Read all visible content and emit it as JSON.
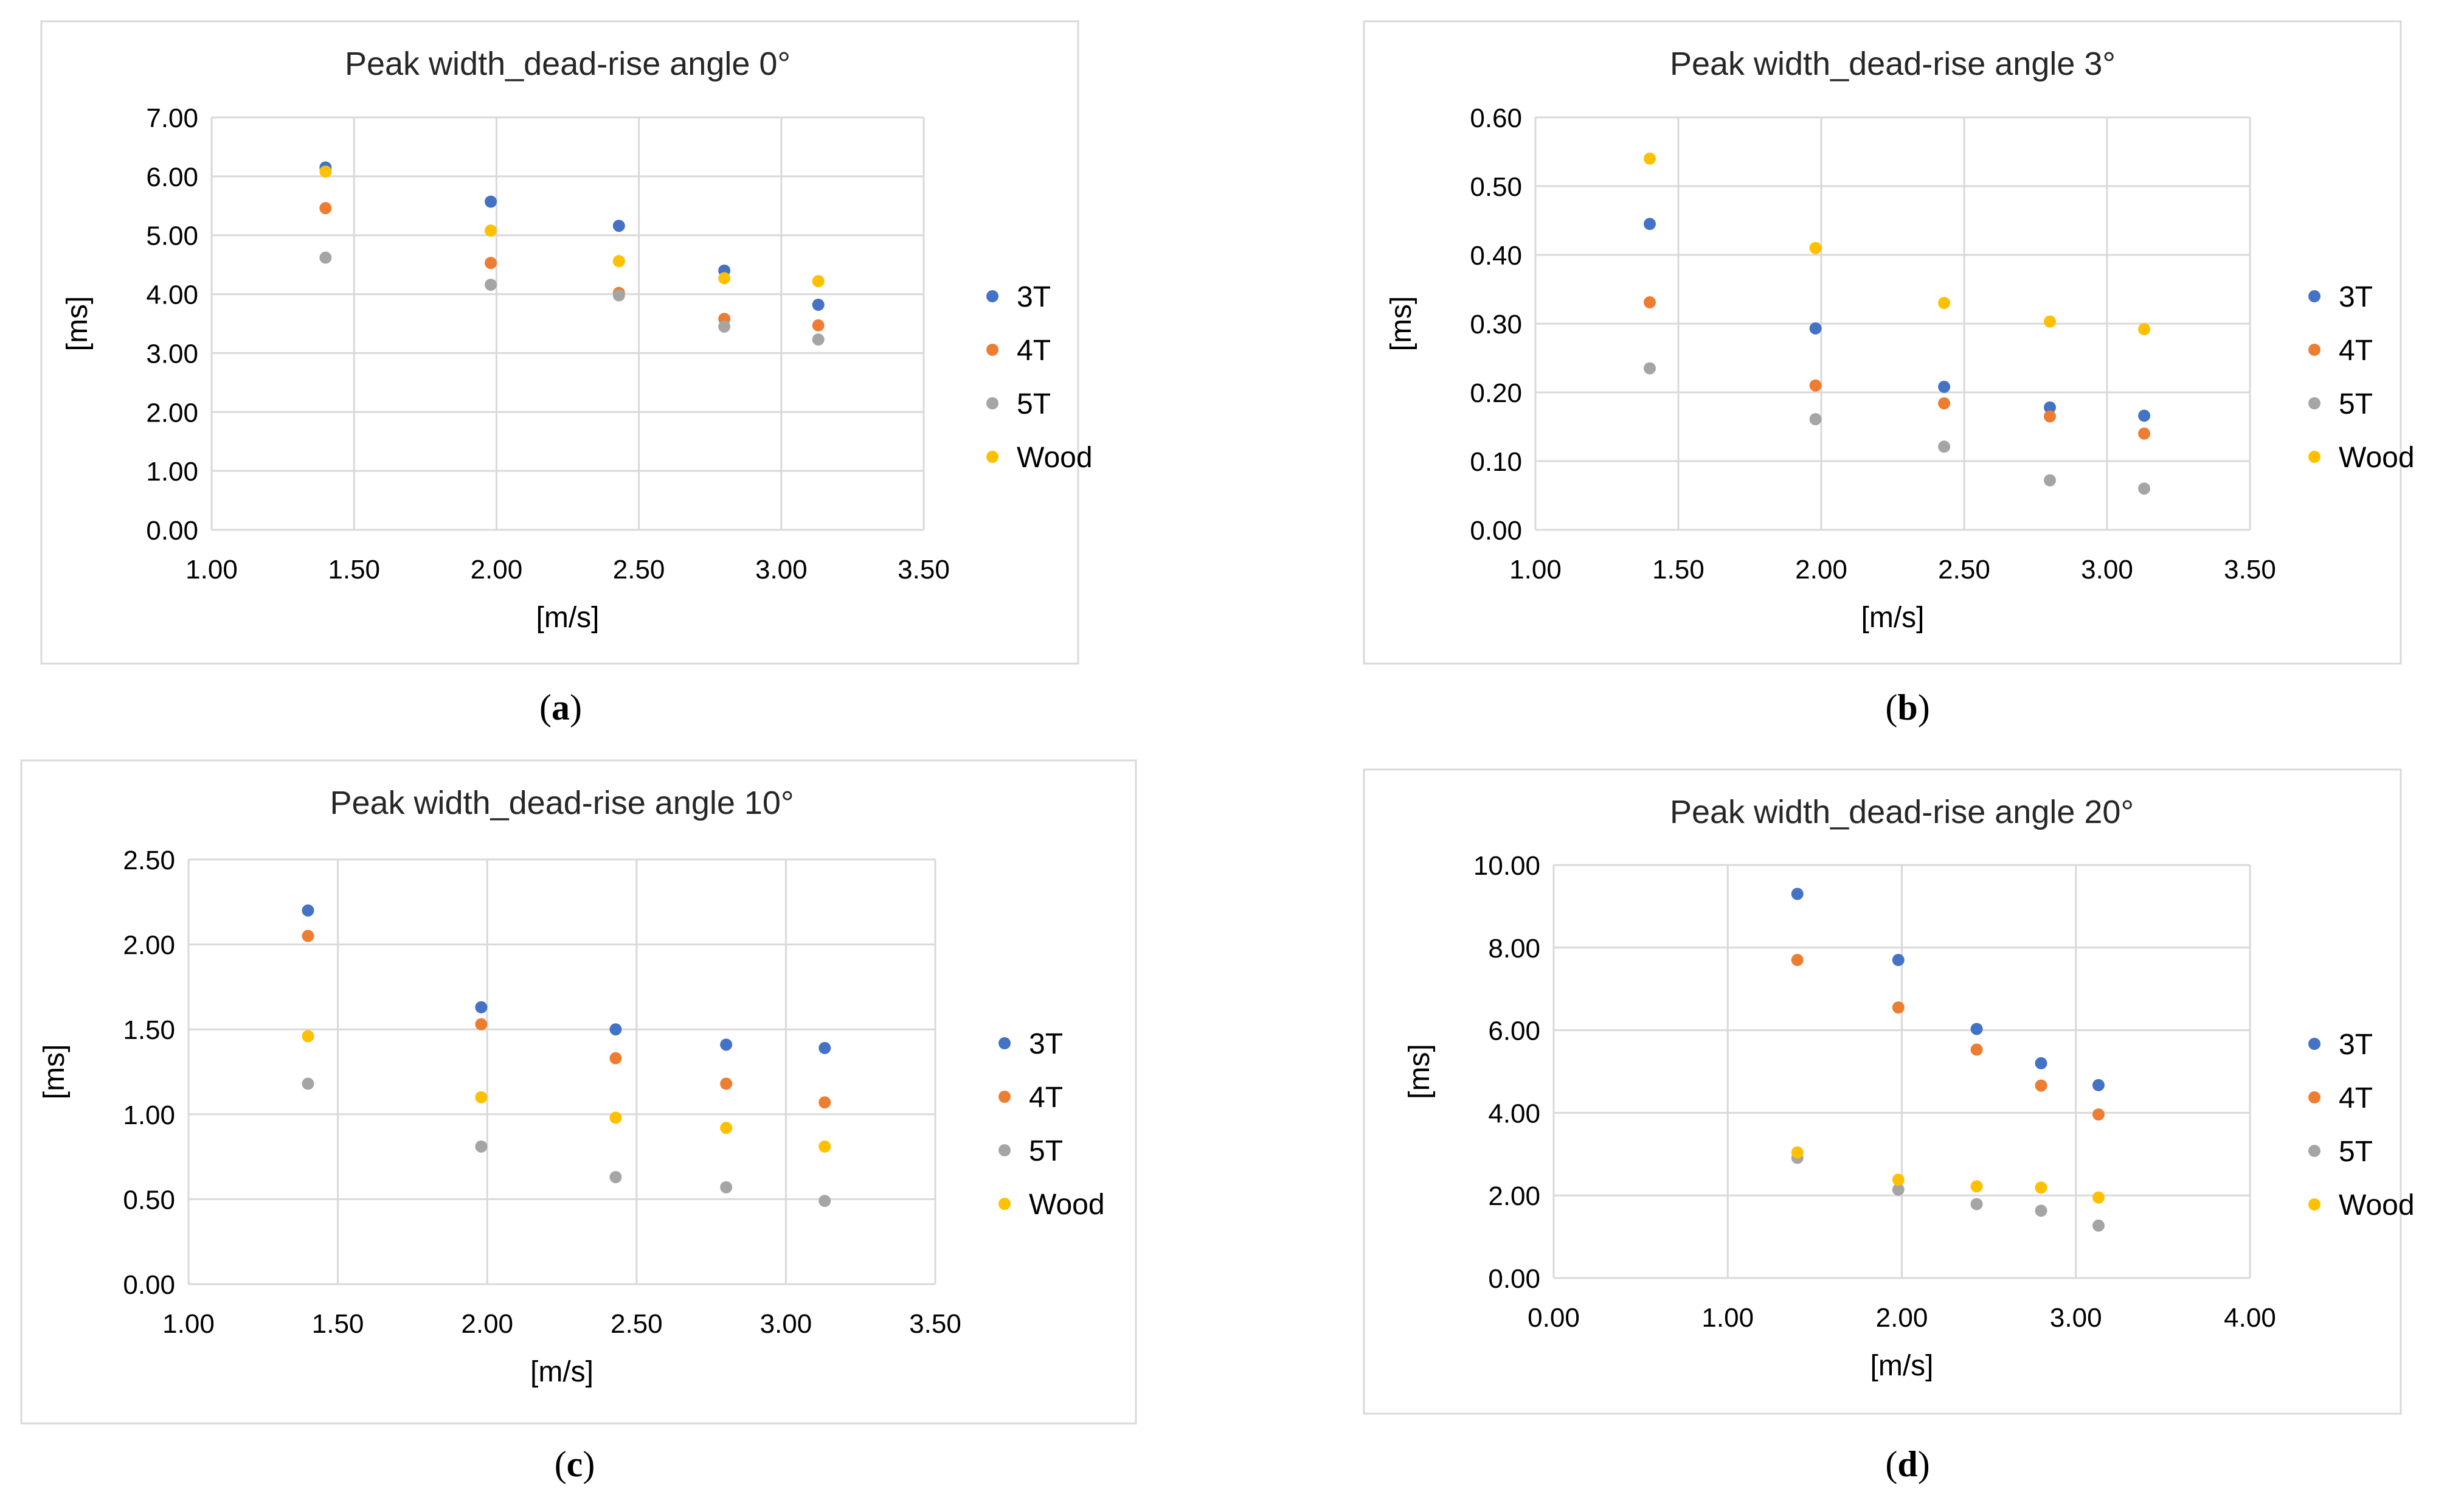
{
  "chart_data": [
    {
      "type": "scatter",
      "panel_label": "a",
      "title": "Peak width_dead-rise angle 0°",
      "xlabel": "[m/s]",
      "ylabel": "[ms]",
      "xlim": [
        1.0,
        3.5
      ],
      "ylim": [
        0.0,
        7.0
      ],
      "xticks": [
        1.0,
        1.5,
        2.0,
        2.5,
        3.0,
        3.5
      ],
      "xtick_labels": [
        "1.00",
        "1.50",
        "2.00",
        "2.50",
        "3.00",
        "3.50"
      ],
      "yticks": [
        0,
        1,
        2,
        3,
        4,
        5,
        6,
        7
      ],
      "ytick_labels": [
        "0.00",
        "1.00",
        "2.00",
        "3.00",
        "4.00",
        "5.00",
        "6.00",
        "7.00"
      ],
      "grid": true,
      "legend_position": "right",
      "series": [
        {
          "name": "3T",
          "color": "#4472C4",
          "x": [
            1.4,
            1.98,
            2.43,
            2.8,
            3.13
          ],
          "y": [
            6.15,
            5.57,
            5.16,
            4.4,
            3.82
          ]
        },
        {
          "name": "4T",
          "color": "#ED7D31",
          "x": [
            1.4,
            1.98,
            2.43,
            2.8,
            3.13
          ],
          "y": [
            5.46,
            4.53,
            4.02,
            3.58,
            3.47
          ]
        },
        {
          "name": "5T",
          "color": "#A5A5A5",
          "x": [
            1.4,
            1.98,
            2.43,
            2.8,
            3.13
          ],
          "y": [
            4.62,
            4.16,
            3.98,
            3.45,
            3.23
          ]
        },
        {
          "name": "Wood",
          "color": "#FFC000",
          "x": [
            1.4,
            1.98,
            2.43,
            2.8,
            3.13
          ],
          "y": [
            6.08,
            5.08,
            4.56,
            4.27,
            4.22
          ]
        }
      ]
    },
    {
      "type": "scatter",
      "panel_label": "b",
      "title": "Peak width_dead-rise angle 3°",
      "xlabel": "[m/s]",
      "ylabel": "[ms]",
      "xlim": [
        1.0,
        3.5
      ],
      "ylim": [
        0.0,
        0.6
      ],
      "xticks": [
        1.0,
        1.5,
        2.0,
        2.5,
        3.0,
        3.5
      ],
      "xtick_labels": [
        "1.00",
        "1.50",
        "2.00",
        "2.50",
        "3.00",
        "3.50"
      ],
      "yticks": [
        0,
        0.1,
        0.2,
        0.3,
        0.4,
        0.5,
        0.6
      ],
      "ytick_labels": [
        "0.00",
        "0.10",
        "0.20",
        "0.30",
        "0.40",
        "0.50",
        "0.60"
      ],
      "grid": true,
      "legend_position": "right",
      "series": [
        {
          "name": "3T",
          "color": "#4472C4",
          "x": [
            1.4,
            1.98,
            2.43,
            2.8,
            3.13
          ],
          "y": [
            0.445,
            0.293,
            0.208,
            0.178,
            0.166
          ]
        },
        {
          "name": "4T",
          "color": "#ED7D31",
          "x": [
            1.4,
            1.98,
            2.43,
            2.8,
            3.13
          ],
          "y": [
            0.331,
            0.21,
            0.184,
            0.165,
            0.14
          ]
        },
        {
          "name": "5T",
          "color": "#A5A5A5",
          "x": [
            1.4,
            1.98,
            2.43,
            2.8,
            3.13
          ],
          "y": [
            0.235,
            0.161,
            0.121,
            0.072,
            0.06
          ]
        },
        {
          "name": "Wood",
          "color": "#FFC000",
          "x": [
            1.4,
            1.98,
            2.43,
            2.8,
            3.13
          ],
          "y": [
            0.54,
            0.41,
            0.33,
            0.303,
            0.292
          ]
        }
      ]
    },
    {
      "type": "scatter",
      "panel_label": "c",
      "title": "Peak width_dead-rise angle 10°",
      "xlabel": "[m/s]",
      "ylabel": "[ms]",
      "xlim": [
        1.0,
        3.5
      ],
      "ylim": [
        0.0,
        2.5
      ],
      "xticks": [
        1.0,
        1.5,
        2.0,
        2.5,
        3.0,
        3.5
      ],
      "xtick_labels": [
        "1.00",
        "1.50",
        "2.00",
        "2.50",
        "3.00",
        "3.50"
      ],
      "yticks": [
        0,
        0.5,
        1.0,
        1.5,
        2.0,
        2.5
      ],
      "ytick_labels": [
        "0.00",
        "0.50",
        "1.00",
        "1.50",
        "2.00",
        "2.50"
      ],
      "grid": true,
      "legend_position": "right",
      "series": [
        {
          "name": "3T",
          "color": "#4472C4",
          "x": [
            1.4,
            1.98,
            2.43,
            2.8,
            3.13
          ],
          "y": [
            2.2,
            1.63,
            1.5,
            1.41,
            1.39
          ]
        },
        {
          "name": "4T",
          "color": "#ED7D31",
          "x": [
            1.4,
            1.98,
            2.43,
            2.8,
            3.13
          ],
          "y": [
            2.05,
            1.53,
            1.33,
            1.18,
            1.07
          ]
        },
        {
          "name": "5T",
          "color": "#A5A5A5",
          "x": [
            1.4,
            1.98,
            2.43,
            2.8,
            3.13
          ],
          "y": [
            1.18,
            0.81,
            0.63,
            0.57,
            0.49
          ]
        },
        {
          "name": "Wood",
          "color": "#FFC000",
          "x": [
            1.4,
            1.98,
            2.43,
            2.8,
            3.13
          ],
          "y": [
            1.46,
            1.1,
            0.98,
            0.92,
            0.81
          ]
        }
      ]
    },
    {
      "type": "scatter",
      "panel_label": "d",
      "title": "Peak width_dead-rise angle 20°",
      "xlabel": "[m/s]",
      "ylabel": "[ms]",
      "xlim": [
        0.0,
        4.0
      ],
      "ylim": [
        0.0,
        10.0
      ],
      "xticks": [
        0,
        1,
        2,
        3,
        4
      ],
      "xtick_labels": [
        "0.00",
        "1.00",
        "2.00",
        "3.00",
        "4.00"
      ],
      "yticks": [
        0,
        2,
        4,
        6,
        8,
        10
      ],
      "ytick_labels": [
        "0.00",
        "2.00",
        "4.00",
        "6.00",
        "8.00",
        "10.00"
      ],
      "grid": true,
      "legend_position": "right",
      "series": [
        {
          "name": "3T",
          "color": "#4472C4",
          "x": [
            1.4,
            1.98,
            2.43,
            2.8,
            3.13
          ],
          "y": [
            9.3,
            7.7,
            6.03,
            5.2,
            4.67
          ]
        },
        {
          "name": "4T",
          "color": "#ED7D31",
          "x": [
            1.4,
            1.98,
            2.43,
            2.8,
            3.13
          ],
          "y": [
            7.7,
            6.55,
            5.53,
            4.66,
            3.96
          ]
        },
        {
          "name": "5T",
          "color": "#A5A5A5",
          "x": [
            1.4,
            1.98,
            2.43,
            2.8,
            3.13
          ],
          "y": [
            2.91,
            2.14,
            1.79,
            1.63,
            1.27
          ]
        },
        {
          "name": "Wood",
          "color": "#FFC000",
          "x": [
            1.4,
            1.98,
            2.43,
            2.8,
            3.13
          ],
          "y": [
            3.04,
            2.38,
            2.22,
            2.19,
            1.95
          ]
        }
      ]
    }
  ]
}
